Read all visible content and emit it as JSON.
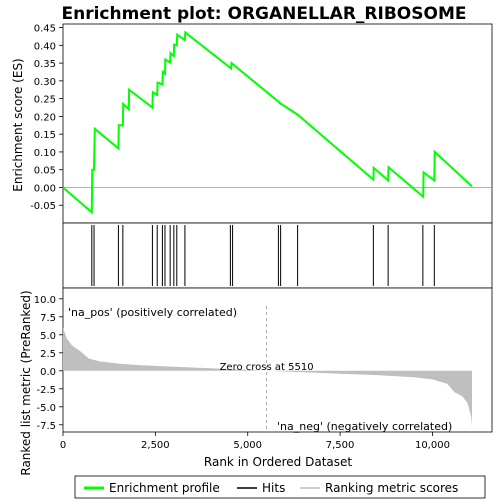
{
  "chart_data": {
    "type": "line",
    "title": "Enrichment plot: ORGANELLAR_RIBOSOME",
    "top_panel": {
      "ylabel": "Enrichment score (ES)",
      "ylim": [
        -0.1,
        0.46
      ],
      "yticks": [
        -0.05,
        0.0,
        0.05,
        0.1,
        0.15,
        0.2,
        0.25,
        0.3,
        0.35,
        0.4,
        0.45
      ],
      "ytick_labels": [
        "-0.05",
        "0.00",
        "0.05",
        "0.10",
        "0.15",
        "0.20",
        "0.25",
        "0.30",
        "0.35",
        "0.40",
        "0.45"
      ],
      "series_name": "Enrichment profile",
      "color": "#00ff00",
      "points": [
        [
          0,
          0.0
        ],
        [
          780,
          -0.07
        ],
        [
          790,
          0.05
        ],
        [
          840,
          0.05
        ],
        [
          860,
          0.165
        ],
        [
          1500,
          0.11
        ],
        [
          1510,
          0.175
        ],
        [
          1620,
          0.175
        ],
        [
          1630,
          0.235
        ],
        [
          1780,
          0.22
        ],
        [
          1790,
          0.275
        ],
        [
          2420,
          0.225
        ],
        [
          2430,
          0.268
        ],
        [
          2550,
          0.26
        ],
        [
          2560,
          0.295
        ],
        [
          2690,
          0.29
        ],
        [
          2700,
          0.325
        ],
        [
          2760,
          0.32
        ],
        [
          2770,
          0.36
        ],
        [
          2900,
          0.352
        ],
        [
          2910,
          0.378
        ],
        [
          3000,
          0.37
        ],
        [
          3010,
          0.402
        ],
        [
          3080,
          0.4
        ],
        [
          3090,
          0.43
        ],
        [
          3300,
          0.415
        ],
        [
          3310,
          0.436
        ],
        [
          4550,
          0.335
        ],
        [
          4560,
          0.35
        ],
        [
          5850,
          0.24
        ],
        [
          5860,
          0.238
        ],
        [
          6350,
          0.205
        ],
        [
          8400,
          0.022
        ],
        [
          8410,
          0.055
        ],
        [
          8800,
          0.02
        ],
        [
          8810,
          0.057
        ],
        [
          9750,
          -0.026
        ],
        [
          9760,
          0.042
        ],
        [
          10050,
          0.02
        ],
        [
          10060,
          0.1
        ],
        [
          11070,
          0.003
        ]
      ]
    },
    "hits": {
      "name": "Hits",
      "positions": [
        780,
        840,
        1500,
        1620,
        2420,
        2550,
        2690,
        2760,
        2900,
        3000,
        3080,
        3300,
        4530,
        4590,
        5830,
        5890,
        6350,
        8400,
        8800,
        9740,
        10050
      ]
    },
    "bottom_panel": {
      "ylabel": "Ranked list metric (PreRanked)",
      "xlabel": "Rank in Ordered Dataset",
      "ylim": [
        -8.5,
        11.5
      ],
      "yticks": [
        -7.5,
        -5.0,
        -2.5,
        0.0,
        2.5,
        5.0,
        7.5,
        10.0
      ],
      "ytick_labels": [
        "-7.5",
        "-5.0",
        "-2.5",
        "0.0",
        "2.5",
        "5.0",
        "7.5",
        "10.0"
      ],
      "xlim": [
        0,
        11070
      ],
      "xticks": [
        0,
        2500,
        5000,
        7500,
        10000
      ],
      "xtick_labels": [
        "0",
        "2,500",
        "5,000",
        "7,500",
        "10,000"
      ],
      "series_name": "Ranking metric scores",
      "color": "#bfbfbf",
      "metric_curve": [
        [
          0,
          6.0
        ],
        [
          100,
          4.5
        ],
        [
          250,
          3.5
        ],
        [
          500,
          2.6
        ],
        [
          700,
          1.7
        ],
        [
          1000,
          1.3
        ],
        [
          1500,
          1.0
        ],
        [
          2000,
          0.8
        ],
        [
          3000,
          0.55
        ],
        [
          4000,
          0.35
        ],
        [
          5000,
          0.12
        ],
        [
          5510,
          0.0
        ],
        [
          6500,
          -0.2
        ],
        [
          7500,
          -0.4
        ],
        [
          8500,
          -0.6
        ],
        [
          9500,
          -0.9
        ],
        [
          10000,
          -1.2
        ],
        [
          10400,
          -1.8
        ],
        [
          10600,
          -3.0
        ],
        [
          10800,
          -3.5
        ],
        [
          10950,
          -4.5
        ],
        [
          11050,
          -6.5
        ],
        [
          11070,
          -7.8
        ]
      ],
      "zero_cross_label": "Zero cross at 5510",
      "zero_cross_rank": 5510,
      "pos_label": "'na_pos' (positively correlated)",
      "neg_label": "'na_neg' (negatively correlated)",
      "pos_color": "#ff0000",
      "neg_color": "#0000ff"
    },
    "legend": [
      {
        "label": "Enrichment profile",
        "color": "#00ff00",
        "style": "line"
      },
      {
        "label": "Hits",
        "color": "#000000",
        "style": "line"
      },
      {
        "label": "Ranking metric scores",
        "color": "#bfbfbf",
        "style": "line"
      }
    ]
  }
}
